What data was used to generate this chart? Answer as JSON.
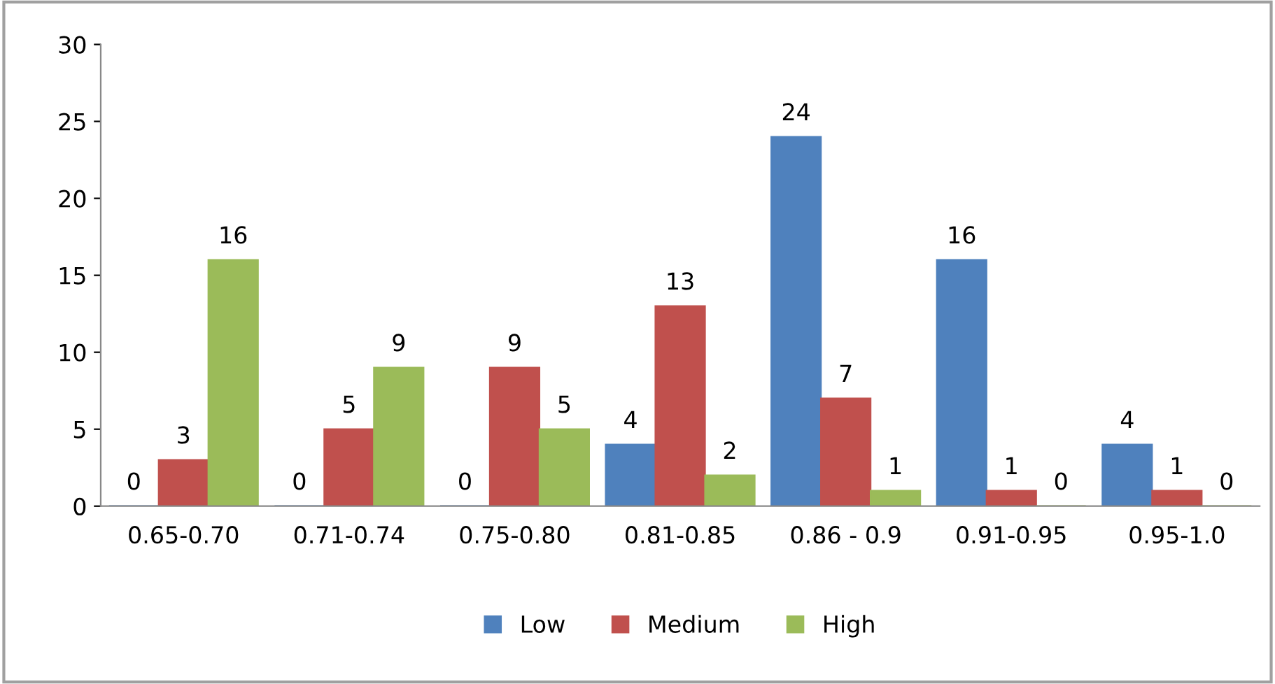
{
  "chart_data": {
    "type": "bar",
    "categories": [
      "0.65-0.70",
      "0.71-0.74",
      "0.75-0.80",
      "0.81-0.85",
      "0.86 - 0.9",
      "0.91-0.95",
      "0.95-1.0"
    ],
    "series": [
      {
        "name": "Low",
        "color": "#4f81bd",
        "values": [
          0,
          0,
          0,
          4,
          24,
          16,
          4
        ]
      },
      {
        "name": "Medium",
        "color": "#c0504d",
        "values": [
          3,
          5,
          9,
          13,
          7,
          1,
          1
        ]
      },
      {
        "name": "High",
        "color": "#9bbb59",
        "values": [
          16,
          9,
          5,
          2,
          1,
          0,
          0
        ]
      }
    ],
    "ylim": [
      0,
      30
    ],
    "yticks": [
      0,
      5,
      10,
      15,
      20,
      25,
      30
    ],
    "data_labels": true,
    "grid": false,
    "legend": "bottom"
  }
}
